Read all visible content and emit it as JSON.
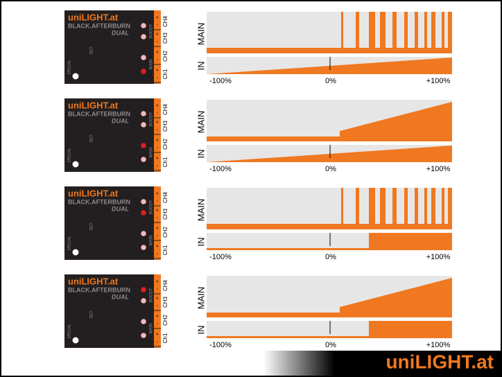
{
  "device": {
    "brand": "uniLIGHT.at",
    "model": "BLACK.AFTERBURN",
    "variant": "DUAL",
    "set_label": "SET",
    "special_label": "SPECIAL",
    "boost_label": "BOOST",
    "main_label": "MAIN",
    "channels": [
      "CH4",
      "CH3",
      "CH2",
      "Ch1"
    ],
    "plus": "+",
    "minus": "-"
  },
  "graph": {
    "main_label": "MAIN",
    "in_label": "IN",
    "x_labels": [
      "-100%",
      "0%",
      "+100%"
    ]
  },
  "footer": {
    "logo": "uniLIGHT.at"
  }
}
